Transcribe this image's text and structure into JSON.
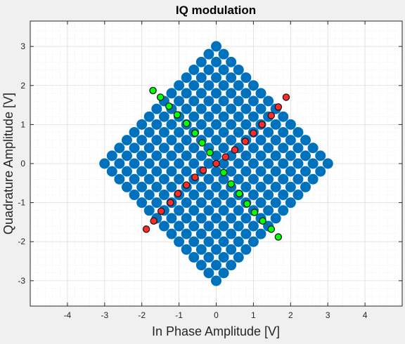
{
  "chart_data": {
    "type": "scatter",
    "title": "IQ modulation",
    "xlabel": "In Phase Amplitude [V]",
    "ylabel": "Quadrature Amplitude [V]",
    "xlim": [
      -5,
      5
    ],
    "ylim": [
      -3.65,
      3.65
    ],
    "xticks": [
      -4,
      -3,
      -2,
      -1,
      0,
      1,
      2,
      3,
      4
    ],
    "yticks": [
      -3,
      -2,
      -1,
      0,
      1,
      2,
      3
    ],
    "grid": "on (major and minor)",
    "lattice": {
      "grid_size": 16,
      "level_spacing": 0.283,
      "rotation_degrees": 45,
      "description": "16x16 constellation rotated 45 degrees"
    },
    "series": [
      {
        "color": "#0072BD",
        "points": "all lattice points"
      },
      {
        "color": "#00FF00",
        "edge_color": "#0072BD",
        "points": [
          [
            -1.7,
            1.87
          ],
          [
            -1.5,
            1.7
          ],
          [
            -1.27,
            1.47
          ],
          [
            -1.05,
            1.25
          ],
          [
            -0.8,
            1.03
          ],
          [
            -0.57,
            0.78
          ],
          [
            -0.38,
            0.53
          ],
          [
            -0.17,
            0.28
          ],
          [
            0.0,
            0.0
          ],
          [
            0.2,
            -0.23
          ],
          [
            0.4,
            -0.52
          ],
          [
            0.62,
            -0.77
          ],
          [
            0.83,
            -1.03
          ],
          [
            1.03,
            -1.25
          ],
          [
            1.25,
            -1.47
          ],
          [
            1.48,
            -1.68
          ],
          [
            1.67,
            -1.88
          ]
        ]
      },
      {
        "color": "#FF2A2A",
        "edge_color": "#0072BD",
        "points": [
          [
            -1.88,
            -1.68
          ],
          [
            -1.68,
            -1.47
          ],
          [
            -1.48,
            -1.22
          ],
          [
            -1.23,
            -1.0
          ],
          [
            -1.03,
            -0.77
          ],
          [
            -0.8,
            -0.55
          ],
          [
            -0.57,
            -0.35
          ],
          [
            -0.35,
            -0.17
          ],
          [
            0.0,
            0.0
          ],
          [
            0.25,
            0.17
          ],
          [
            0.5,
            0.35
          ],
          [
            0.78,
            0.57
          ],
          [
            1.0,
            0.78
          ],
          [
            1.23,
            1.0
          ],
          [
            1.48,
            1.23
          ],
          [
            1.67,
            1.45
          ],
          [
            1.88,
            1.7
          ]
        ]
      }
    ]
  }
}
